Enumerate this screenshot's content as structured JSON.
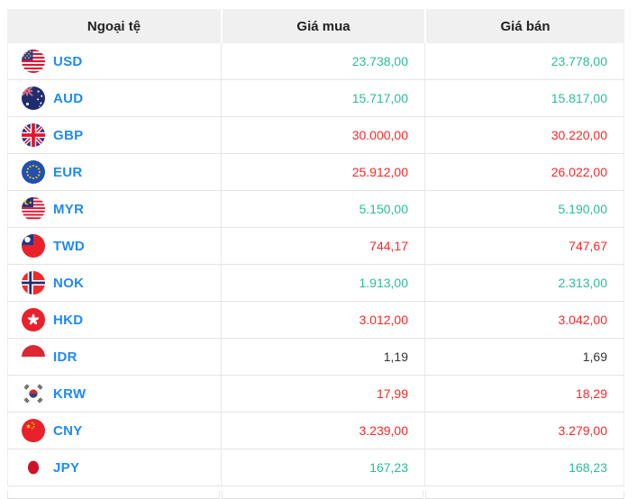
{
  "table": {
    "columns": [
      {
        "label": "Ngoại tệ"
      },
      {
        "label": "Giá mua"
      },
      {
        "label": "Giá bán"
      }
    ],
    "rows": [
      {
        "code": "USD",
        "flag": "us",
        "flag_icon": "usd-flag-icon",
        "buy": "23.738,00",
        "buy_trend": "up",
        "sell": "23.778,00",
        "sell_trend": "up"
      },
      {
        "code": "AUD",
        "flag": "au",
        "flag_icon": "aud-flag-icon",
        "buy": "15.717,00",
        "buy_trend": "up",
        "sell": "15.817,00",
        "sell_trend": "up"
      },
      {
        "code": "GBP",
        "flag": "gb",
        "flag_icon": "gbp-flag-icon",
        "buy": "30.000,00",
        "buy_trend": "down",
        "sell": "30.220,00",
        "sell_trend": "down"
      },
      {
        "code": "EUR",
        "flag": "eu",
        "flag_icon": "eur-flag-icon",
        "buy": "25.912,00",
        "buy_trend": "down",
        "sell": "26.022,00",
        "sell_trend": "down"
      },
      {
        "code": "MYR",
        "flag": "my",
        "flag_icon": "myr-flag-icon",
        "buy": "5.150,00",
        "buy_trend": "up",
        "sell": "5.190,00",
        "sell_trend": "up"
      },
      {
        "code": "TWD",
        "flag": "tw",
        "flag_icon": "twd-flag-icon",
        "buy": "744,17",
        "buy_trend": "down",
        "sell": "747,67",
        "sell_trend": "down"
      },
      {
        "code": "NOK",
        "flag": "no",
        "flag_icon": "nok-flag-icon",
        "buy": "1.913,00",
        "buy_trend": "up",
        "sell": "2.313,00",
        "sell_trend": "up"
      },
      {
        "code": "HKD",
        "flag": "hk",
        "flag_icon": "hkd-flag-icon",
        "buy": "3.012,00",
        "buy_trend": "down",
        "sell": "3.042,00",
        "sell_trend": "down"
      },
      {
        "code": "IDR",
        "flag": "id",
        "flag_icon": "idr-flag-icon",
        "buy": "1,19",
        "buy_trend": "flat",
        "sell": "1,69",
        "sell_trend": "flat"
      },
      {
        "code": "KRW",
        "flag": "kr",
        "flag_icon": "krw-flag-icon",
        "buy": "17,99",
        "buy_trend": "down",
        "sell": "18,29",
        "sell_trend": "down"
      },
      {
        "code": "CNY",
        "flag": "cn",
        "flag_icon": "cny-flag-icon",
        "buy": "3.239,00",
        "buy_trend": "down",
        "sell": "3.279,00",
        "sell_trend": "down"
      },
      {
        "code": "JPY",
        "flag": "jp",
        "flag_icon": "jpy-flag-icon",
        "buy": "167,23",
        "buy_trend": "up",
        "sell": "168,23",
        "sell_trend": "up"
      }
    ]
  },
  "colors": {
    "up": "#2abd96",
    "down": "#ff2626",
    "flat": "#333333",
    "currency_link": "#1e8af5",
    "header_bg": "#f0f0f0",
    "header_text": "#222222",
    "row_border": "#e4e4e4"
  }
}
